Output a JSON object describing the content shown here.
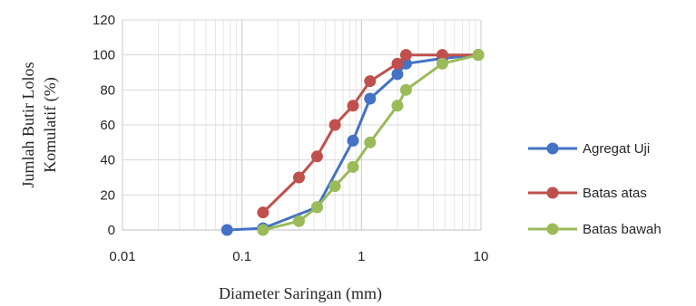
{
  "chart_data": {
    "type": "line",
    "title": "",
    "xlabel": "Diameter Saringan (mm)",
    "ylabel_lines": [
      "Jumlah Butir Lolos",
      "Komulatif (%)"
    ],
    "x_scale": "log",
    "xlim": [
      0.01,
      10
    ],
    "ylim": [
      0,
      120
    ],
    "x_ticks": [
      0.01,
      0.1,
      1,
      10
    ],
    "x_tick_labels": [
      "0.01",
      "0.1",
      "1",
      "10"
    ],
    "y_ticks": [
      0,
      20,
      40,
      60,
      80,
      100,
      120
    ],
    "y_tick_labels": [
      "0",
      "20",
      "40",
      "60",
      "80",
      "100",
      "120"
    ],
    "grid": true,
    "legend_position": "right",
    "series": [
      {
        "name": "Agregat Uji",
        "color": "#4472C4",
        "x": [
          0.075,
          0.15,
          0.425,
          0.85,
          1.18,
          2.0,
          2.36,
          4.75,
          9.5
        ],
        "y": [
          0,
          1,
          13,
          51,
          75,
          89,
          95,
          98,
          100
        ]
      },
      {
        "name": "Batas atas",
        "color": "#C0504D",
        "x": [
          0.15,
          0.3,
          0.425,
          0.6,
          0.85,
          1.18,
          2.0,
          2.36,
          4.75,
          9.5
        ],
        "y": [
          10,
          30,
          42,
          60,
          71,
          85,
          95,
          100,
          100,
          100
        ]
      },
      {
        "name": "Batas bawah",
        "color": "#9BBB59",
        "x": [
          0.15,
          0.3,
          0.425,
          0.6,
          0.85,
          1.18,
          2.0,
          2.36,
          4.75,
          9.5
        ],
        "y": [
          0,
          5,
          13,
          25,
          36,
          50,
          71,
          80,
          95,
          100
        ]
      }
    ]
  }
}
